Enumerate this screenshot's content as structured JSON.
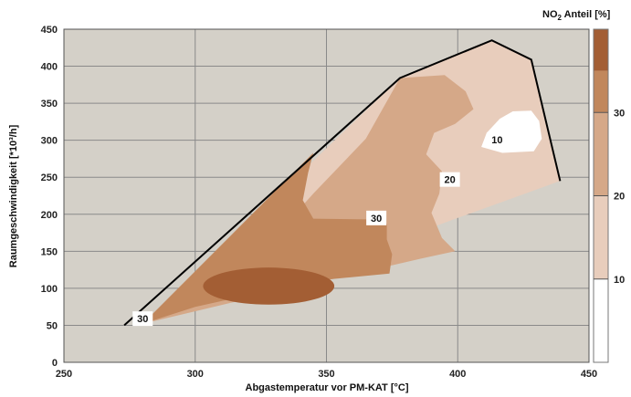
{
  "chart_data": {
    "type": "heatmap",
    "title": "",
    "xlabel": "Abgastemperatur vor PM-KAT [°C]",
    "ylabel": "Raumgeschwindigkeit [*10³/h]",
    "xlim": [
      250,
      450
    ],
    "ylim": [
      0,
      450
    ],
    "x_ticks": [
      "250",
      "300",
      "350",
      "400",
      "450"
    ],
    "y_ticks": [
      "0",
      "50",
      "100",
      "150",
      "200",
      "250",
      "300",
      "350",
      "400",
      "450"
    ],
    "grid": true,
    "colors": {
      "plot_bg": "#d4d0c8",
      "band_lt10": "#ffffff",
      "band_10_20": "#e8cdbc",
      "band_20_30": "#d5a888",
      "band_30_35": "#c1875c",
      "band_gt35": "#a35e34",
      "boundary": "#000000"
    },
    "colorbar": {
      "title_prefix": "NO",
      "title_sub": "2",
      "title_suffix": " Anteil  [%]",
      "ticks": [
        {
          "value": 10,
          "label": "10"
        },
        {
          "value": 20,
          "label": "20"
        },
        {
          "value": 30,
          "label": "30"
        }
      ],
      "range": [
        0,
        40
      ]
    },
    "boundary_line": [
      {
        "x": 273,
        "y": 50
      },
      {
        "x": 378,
        "y": 384
      },
      {
        "x": 413,
        "y": 435
      },
      {
        "x": 428,
        "y": 409
      },
      {
        "x": 439,
        "y": 245
      }
    ],
    "regions": [
      {
        "level": "10-20",
        "points": [
          {
            "x": 278,
            "y": 52
          },
          {
            "x": 280,
            "y": 52
          },
          {
            "x": 378,
            "y": 384
          },
          {
            "x": 413,
            "y": 435
          },
          {
            "x": 428,
            "y": 409
          },
          {
            "x": 439,
            "y": 245
          },
          {
            "x": 425,
            "y": 227
          },
          {
            "x": 400,
            "y": 195
          },
          {
            "x": 350,
            "y": 130
          }
        ]
      },
      {
        "level": "20-30",
        "points": [
          {
            "x": 280,
            "y": 52
          },
          {
            "x": 310,
            "y": 90
          },
          {
            "x": 345,
            "y": 228
          },
          {
            "x": 365,
            "y": 302
          },
          {
            "x": 378,
            "y": 384
          },
          {
            "x": 395,
            "y": 388
          },
          {
            "x": 403,
            "y": 366
          },
          {
            "x": 406,
            "y": 342
          },
          {
            "x": 399,
            "y": 322
          },
          {
            "x": 391,
            "y": 310
          },
          {
            "x": 388,
            "y": 281
          },
          {
            "x": 394,
            "y": 258
          },
          {
            "x": 393,
            "y": 228
          },
          {
            "x": 390,
            "y": 202
          },
          {
            "x": 394,
            "y": 168
          },
          {
            "x": 399,
            "y": 150
          },
          {
            "x": 386,
            "y": 140
          },
          {
            "x": 325,
            "y": 90
          }
        ]
      },
      {
        "level": "30-35",
        "points": [
          {
            "x": 280,
            "y": 52
          },
          {
            "x": 345,
            "y": 283
          },
          {
            "x": 343,
            "y": 256
          },
          {
            "x": 341,
            "y": 219
          },
          {
            "x": 345,
            "y": 194
          },
          {
            "x": 369,
            "y": 193
          },
          {
            "x": 373,
            "y": 187
          },
          {
            "x": 373,
            "y": 166
          },
          {
            "x": 375,
            "y": 146
          },
          {
            "x": 374,
            "y": 120
          },
          {
            "x": 345,
            "y": 110
          },
          {
            "x": 300,
            "y": 75
          }
        ]
      },
      {
        "level": "lt10",
        "points": [
          {
            "x": 411,
            "y": 310
          },
          {
            "x": 416,
            "y": 329
          },
          {
            "x": 421,
            "y": 339
          },
          {
            "x": 428,
            "y": 340
          },
          {
            "x": 431,
            "y": 326
          },
          {
            "x": 432,
            "y": 302
          },
          {
            "x": 429,
            "y": 285
          },
          {
            "x": 417,
            "y": 283
          },
          {
            "x": 409,
            "y": 291
          }
        ]
      }
    ],
    "ellipse": {
      "level": "gt35",
      "cx": 328,
      "cy": 103,
      "rx": 25,
      "ry": 25
    },
    "contour_labels": [
      {
        "text": "10",
        "x": 415,
        "y": 301
      },
      {
        "text": "20",
        "x": 397,
        "y": 247
      },
      {
        "text": "30",
        "x": 369,
        "y": 195
      },
      {
        "text": "30",
        "x": 280,
        "y": 59
      }
    ]
  }
}
